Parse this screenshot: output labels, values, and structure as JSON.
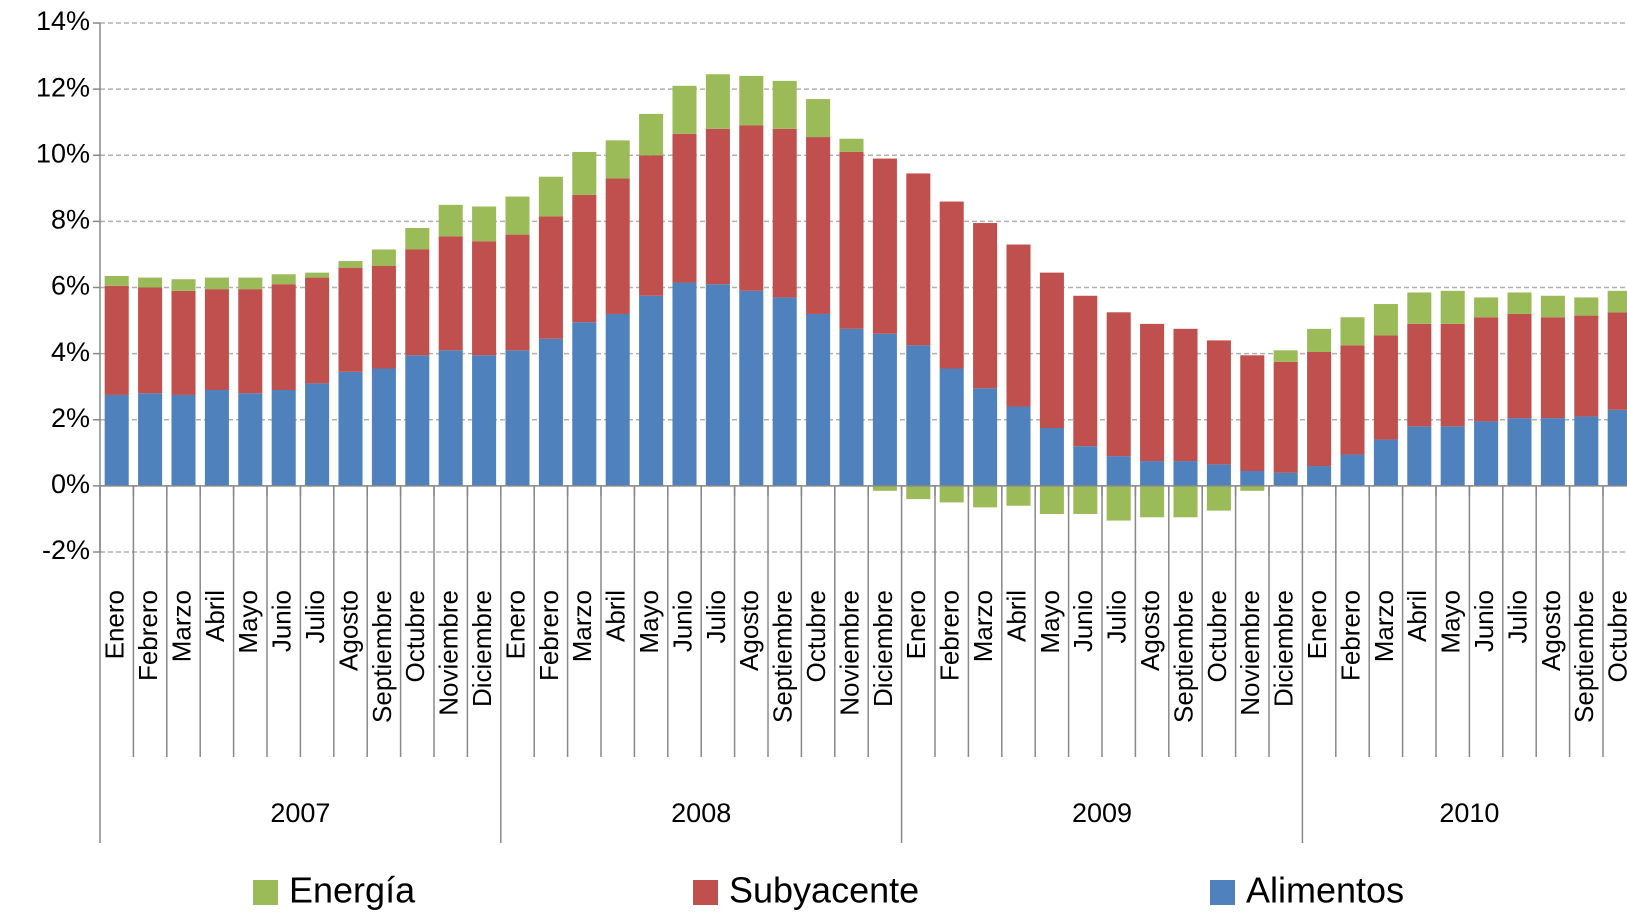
{
  "chart_data": {
    "type": "bar",
    "stacked": true,
    "categories": [
      "Enero",
      "Febrero",
      "Marzo",
      "Abril",
      "Mayo",
      "Junio",
      "Julio",
      "Agosto",
      "Septiembre",
      "Octubre",
      "Noviembre",
      "Diciembre",
      "Enero",
      "Febrero",
      "Marzo",
      "Abril",
      "Mayo",
      "Junio",
      "Julio",
      "Agosto",
      "Septiembre",
      "Octubre",
      "Noviembre",
      "Diciembre",
      "Enero",
      "Febrero",
      "Marzo",
      "Abril",
      "Mayo",
      "Junio",
      "Julio",
      "Agosto",
      "Septiembre",
      "Octubre",
      "Noviembre",
      "Diciembre",
      "Enero",
      "Febrero",
      "Marzo",
      "Abril",
      "Mayo",
      "Junio",
      "Julio",
      "Agosto",
      "Septiembre",
      "Octubre"
    ],
    "groups": [
      "2007",
      "2008",
      "2009",
      "2010"
    ],
    "series": [
      {
        "name": "Alimentos",
        "color": "#4f81bd",
        "values": [
          2.75,
          2.8,
          2.75,
          2.9,
          2.8,
          2.9,
          3.1,
          3.45,
          3.55,
          3.95,
          4.1,
          3.95,
          4.1,
          4.45,
          4.95,
          5.2,
          5.75,
          6.15,
          6.1,
          5.9,
          5.7,
          5.2,
          4.75,
          4.6,
          4.25,
          3.55,
          2.95,
          2.4,
          1.75,
          1.2,
          0.9,
          0.75,
          0.75,
          0.65,
          0.45,
          0.4,
          0.6,
          0.95,
          1.4,
          1.8,
          1.8,
          1.95,
          2.05,
          2.05,
          2.1,
          2.3
        ]
      },
      {
        "name": "Subyacente",
        "color": "#c0504d",
        "values": [
          3.3,
          3.2,
          3.15,
          3.05,
          3.15,
          3.2,
          3.2,
          3.15,
          3.1,
          3.2,
          3.45,
          3.45,
          3.5,
          3.7,
          3.85,
          4.1,
          4.25,
          4.5,
          4.7,
          5.0,
          5.1,
          5.35,
          5.35,
          5.3,
          5.2,
          5.05,
          5.0,
          4.9,
          4.7,
          4.55,
          4.35,
          4.15,
          4.0,
          3.75,
          3.5,
          3.35,
          3.45,
          3.3,
          3.15,
          3.1,
          3.1,
          3.15,
          3.15,
          3.05,
          3.05,
          2.95
        ]
      },
      {
        "name": "Energía",
        "color": "#9bbb59",
        "values": [
          0.3,
          0.3,
          0.35,
          0.35,
          0.35,
          0.3,
          0.15,
          0.2,
          0.5,
          0.65,
          0.95,
          1.05,
          1.15,
          1.2,
          1.3,
          1.15,
          1.25,
          1.45,
          1.65,
          1.5,
          1.45,
          1.15,
          0.4,
          -0.15,
          -0.4,
          -0.5,
          -0.65,
          -0.6,
          -0.85,
          -0.85,
          -1.05,
          -0.95,
          -0.95,
          -0.75,
          -0.15,
          0.35,
          0.7,
          0.85,
          0.95,
          0.95,
          1.0,
          0.6,
          0.65,
          0.65,
          0.55,
          0.65
        ]
      }
    ],
    "ylim": [
      -2,
      14
    ],
    "yticks": [
      {
        "value": -2,
        "label": "-2%"
      },
      {
        "value": 0,
        "label": "0%"
      },
      {
        "value": 2,
        "label": "2%"
      },
      {
        "value": 4,
        "label": "4%"
      },
      {
        "value": 6,
        "label": "6%"
      },
      {
        "value": 8,
        "label": "8%"
      },
      {
        "value": 10,
        "label": "10%"
      },
      {
        "value": 12,
        "label": "12%"
      },
      {
        "value": 14,
        "label": "14%"
      }
    ],
    "grid": true
  }
}
